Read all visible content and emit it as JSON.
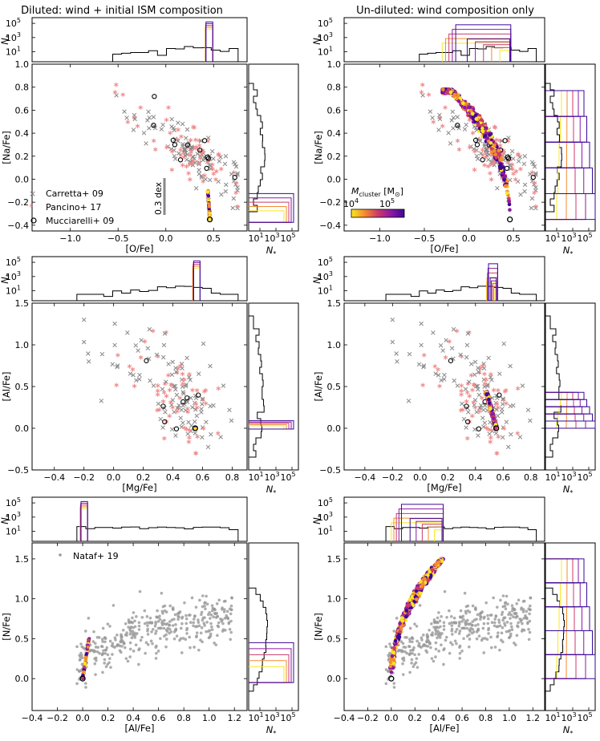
{
  "figure": {
    "col_titles": [
      "Diluted: wind + initial ISM composition",
      "Un-diluted: wind composition only"
    ],
    "n_label": "N",
    "n_sub": "*",
    "hist_y_ticks": [
      "10",
      "10",
      "10"
    ],
    "hist_y_exps": [
      "1",
      "3",
      "5"
    ],
    "side_x_ticks": [
      "10",
      "10",
      "10"
    ],
    "side_x_exps": [
      "1",
      "3",
      "5"
    ],
    "legend_top": {
      "carretta": "Carretta+ 09",
      "pancino": "Pancino+ 17",
      "mucciarelli": "Mucciarelli+ 09"
    },
    "legend_bottom": {
      "nataf": "Nataf+ 19"
    },
    "scale_bar_label": "0.3 dex",
    "colorbar": {
      "label": "M",
      "label_sub": "cluster",
      "label_unit": " [M",
      "label_sun": "⊙",
      "label_close": "]",
      "tick_base": [
        "10",
        "10"
      ],
      "tick_exp": [
        "4",
        "5"
      ],
      "colors": [
        "#f9e721",
        "#f58b2e",
        "#cc3a6a",
        "#8b1aa3",
        "#3a0897"
      ]
    },
    "marker_colors": {
      "carretta": "#777777",
      "pancino": "#f08a8a",
      "mucciarelli": "#000000",
      "nataf": "#888888"
    }
  },
  "chart_data": [
    {
      "type": "scatter",
      "panel": "row1-left",
      "title": "Diluted: wind + initial ISM composition",
      "xlabel": "[O/Fe]",
      "ylabel": "[Na/Fe]",
      "xlim": [
        -1.4,
        0.85
      ],
      "ylim": [
        -0.45,
        1.0
      ],
      "x_ticks": [
        "−1.0",
        "−0.5",
        "0.0",
        "0.5"
      ],
      "y_ticks": [
        "−0.4",
        "−0.2",
        "0.0",
        "0.2",
        "0.4",
        "0.6",
        "0.8",
        "1.0"
      ],
      "observations": [
        "Carretta+ 09",
        "Pancino+ 17",
        "Mucciarelli+ 09"
      ],
      "model_track": {
        "x_start": 0.46,
        "y_start": -0.35,
        "x_end": 0.44,
        "y_end": -0.1
      }
    },
    {
      "type": "scatter",
      "panel": "row1-right",
      "title": "Un-diluted: wind composition only",
      "xlabel": "[O/Fe]",
      "ylabel": "[Na/Fe]",
      "xlim": [
        -1.4,
        0.85
      ],
      "ylim": [
        -0.45,
        1.0
      ],
      "x_ticks": [
        "−1.0",
        "−0.5",
        "0.0",
        "0.5"
      ],
      "y_ticks": [
        "−0.4",
        "−0.2",
        "0.0",
        "0.2",
        "0.4",
        "0.6",
        "0.8",
        "1.0"
      ],
      "model_track": {
        "x_start": 0.46,
        "y_start": -0.35,
        "x_end": -0.3,
        "y_end": 0.77
      }
    },
    {
      "type": "scatter",
      "panel": "row2-left",
      "xlabel": "[Mg/Fe]",
      "ylabel": "[Al/Fe]",
      "xlim": [
        -0.55,
        0.9
      ],
      "ylim": [
        -0.5,
        1.5
      ],
      "x_ticks": [
        "−0.4",
        "−0.2",
        "0.0",
        "0.2",
        "0.4",
        "0.6",
        "0.8"
      ],
      "y_ticks": [
        "−0.5",
        "0.0",
        "0.5",
        "1.0",
        "1.5"
      ],
      "model_track": {
        "x_start": 0.55,
        "y_start": 0.0,
        "x_end": 0.55,
        "y_end": 0.0
      }
    },
    {
      "type": "scatter",
      "panel": "row2-right",
      "xlabel": "[Mg/Fe]",
      "ylabel": "[Al/Fe]",
      "xlim": [
        -0.55,
        0.9
      ],
      "ylim": [
        -0.5,
        1.5
      ],
      "x_ticks": [
        "−0.4",
        "−0.2",
        "0.0",
        "0.2",
        "0.4",
        "0.6",
        "0.8"
      ],
      "y_ticks": [
        "−0.5",
        "0.0",
        "0.5",
        "1.0",
        "1.5"
      ],
      "model_track": {
        "x_start": 0.55,
        "y_start": 0.0,
        "x_end": 0.48,
        "y_end": 0.43
      }
    },
    {
      "type": "scatter",
      "panel": "row3-left",
      "xlabel": "[Al/Fe]",
      "ylabel": "[N/Fe]",
      "xlim": [
        -0.4,
        1.3
      ],
      "ylim": [
        -0.4,
        1.7
      ],
      "x_ticks": [
        "−0.4",
        "−0.2",
        "0.0",
        "0.2",
        "0.4",
        "0.6",
        "0.8",
        "1.0",
        "1.2"
      ],
      "y_ticks": [
        "0.0",
        "0.5",
        "1.0",
        "1.5"
      ],
      "observations": [
        "Nataf+ 19"
      ],
      "model_track": {
        "x_start": 0.0,
        "y_start": 0.0,
        "x_end": 0.05,
        "y_end": 0.5
      }
    },
    {
      "type": "scatter",
      "panel": "row3-right",
      "xlabel": "[Al/Fe]",
      "ylabel": "[N/Fe]",
      "xlim": [
        -0.4,
        1.3
      ],
      "ylim": [
        -0.4,
        1.7
      ],
      "x_ticks": [
        "−0.4",
        "−0.2",
        "0.0",
        "0.2",
        "0.4",
        "0.6",
        "0.8",
        "1.0",
        "1.2"
      ],
      "y_ticks": [
        "0.0",
        "0.5",
        "1.0",
        "1.5"
      ],
      "model_track": {
        "x_start": 0.0,
        "y_start": 0.0,
        "x_end": 0.43,
        "y_end": 1.5
      }
    }
  ]
}
